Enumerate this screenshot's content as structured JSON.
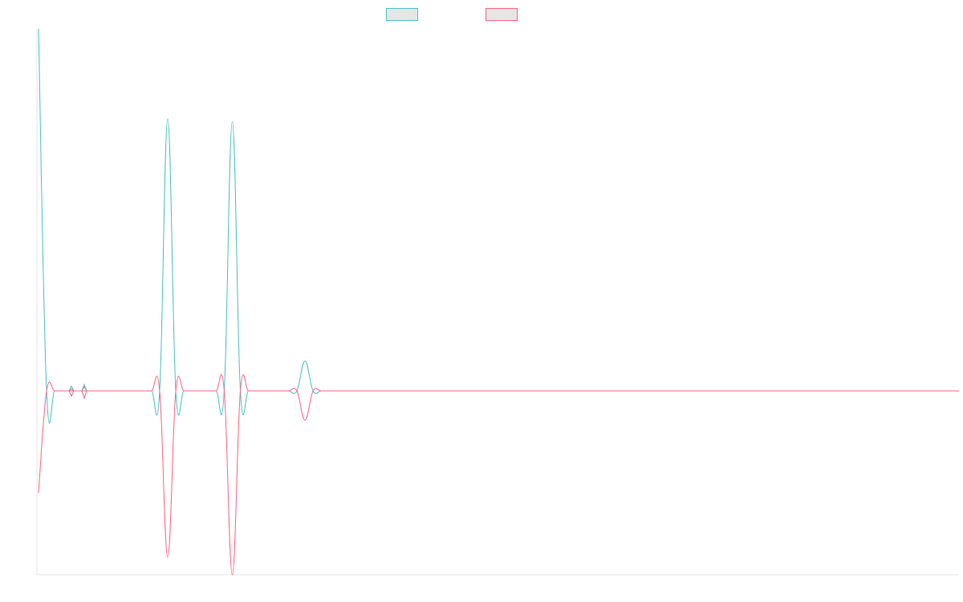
{
  "chart_data": {
    "type": "line",
    "title": "",
    "xlabel": "",
    "ylabel": "",
    "x_count": 115,
    "ylim": [
      -63,
      125
    ],
    "grid": false,
    "legend_placement": "top-center",
    "series": [
      {
        "color": "#4bc0c0",
        "legend_fill": "#e6e6e6",
        "values": [
          121,
          0,
          0,
          0,
          0,
          0,
          0,
          0,
          0,
          0,
          0,
          0,
          0,
          0,
          0,
          0,
          91,
          0,
          0,
          0,
          0,
          0,
          0,
          0,
          90,
          0,
          0,
          0,
          0,
          0,
          0,
          0,
          0,
          10,
          0,
          0,
          0,
          0,
          0,
          0,
          0,
          0,
          0,
          0,
          0,
          0,
          0,
          0,
          0,
          0,
          0,
          0,
          0,
          0,
          0,
          0,
          0,
          0,
          0,
          0,
          0,
          0,
          0,
          0,
          0,
          0,
          0,
          0,
          0,
          0,
          0,
          0,
          0,
          0,
          0,
          0,
          0,
          0,
          0,
          0,
          0,
          0,
          0,
          0,
          0,
          0,
          0,
          0,
          0,
          0,
          0,
          0,
          0,
          0,
          0,
          0,
          0,
          0,
          0,
          0,
          0,
          0,
          0,
          0,
          0,
          0,
          0,
          0,
          0,
          0,
          0,
          0,
          0,
          0,
          0
        ]
      },
      {
        "color": "#ff6384",
        "legend_fill": "#e6e6e6",
        "values": [
          -35,
          0,
          0,
          0,
          0,
          0,
          0,
          0,
          0,
          0,
          0,
          0,
          0,
          0,
          0,
          0,
          -57,
          0,
          0,
          0,
          0,
          0,
          0,
          0,
          -63,
          0,
          0,
          0,
          0,
          0,
          0,
          0,
          0,
          -10,
          0,
          0,
          0,
          0,
          0,
          0,
          0,
          0,
          0,
          0,
          0,
          0,
          0,
          0,
          0,
          0,
          0,
          0,
          0,
          0,
          0,
          0,
          0,
          0,
          0,
          0,
          0,
          0,
          0,
          0,
          0,
          0,
          0,
          0,
          0,
          0,
          0,
          0,
          0,
          0,
          0,
          0,
          0,
          0,
          0,
          0,
          0,
          0,
          0,
          0,
          0,
          0,
          0,
          0,
          0,
          0,
          0,
          0,
          0,
          0,
          0,
          0,
          0,
          0,
          0,
          0,
          0,
          0,
          0,
          0,
          0,
          0,
          0,
          0,
          0,
          0,
          0,
          0,
          0,
          0,
          0
        ]
      }
    ]
  }
}
